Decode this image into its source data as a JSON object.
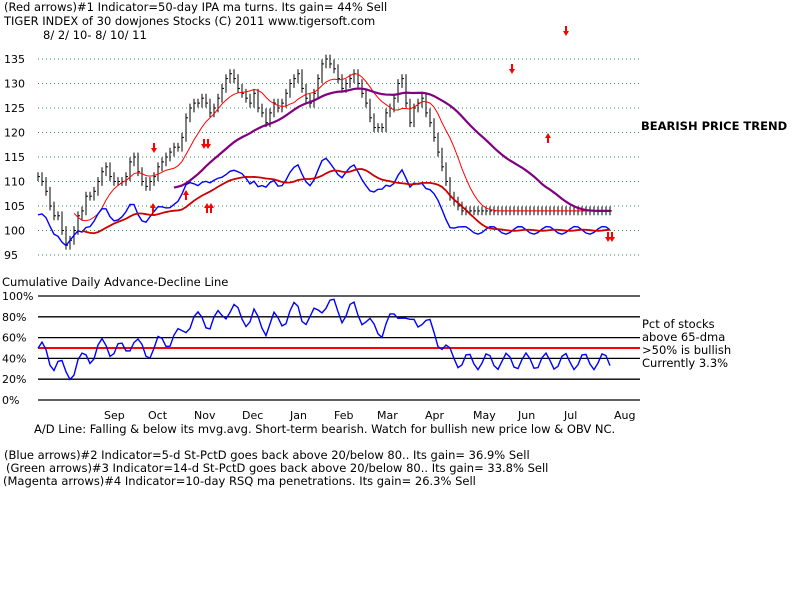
{
  "header": {
    "line1": "(Red arrows)#1 Indicator=50-day IPA ma turns. Its gain= 44% Sell",
    "line2": "TIGER INDEX of  30 dowjones Stocks  (C) 2011  www.tigersoft.com",
    "line3": "8/ 2/ 10- 8/ 10/ 11"
  },
  "annotations": {
    "trend": "BEARISH PRICE TREND",
    "cum_ad": "Cumulative Daily Advance-Decline Line",
    "pct_1": "Pct of stocks",
    "pct_2": "above 65-dma",
    "pct_3": ">50% is bullish",
    "pct_4": "Currently  3.3%",
    "ad_line": "A/D Line: Falling & below its mvg.avg. Short-term bearish. Watch for bullish new price low & OBV NC."
  },
  "footer": {
    "blue": "(Blue arrows)#2 Indicator=5-d St-PctD goes back above 20/below 80.. Its gain= 36.9% Sell",
    "green": "(Green arrows)#3 Indicator=14-d St-PctD goes back above 20/below 80.. Its gain= 33.8% Sell",
    "magenta": "(Magenta arrows)#4 Indicator=10-day RSQ ma penetrations. Its gain= 26.3% Sell"
  },
  "colors": {
    "price": "#000000",
    "ma_fast": "#ff0000",
    "ma_slow": "#800080",
    "ad_line": "#0000ff",
    "ad_ma": "#cc0000",
    "pct_line": "#0000ff",
    "fifty_line": "#ff0000",
    "arrow": "#ff0000"
  },
  "chart_data": [
    {
      "type": "line",
      "name": "price",
      "yticks": [
        135,
        130,
        125,
        120,
        115,
        110,
        105,
        100,
        95
      ],
      "ylim": [
        95,
        137
      ],
      "x": [
        0,
        4,
        8,
        12,
        16,
        20,
        24,
        28,
        32,
        36,
        40,
        44,
        48,
        52,
        56,
        60,
        64,
        68,
        72,
        76,
        80,
        84,
        88,
        92,
        96,
        100,
        104,
        108,
        112,
        116,
        120,
        124,
        128,
        132,
        136,
        140,
        144,
        148,
        152,
        156,
        160,
        164,
        168,
        172,
        176,
        180,
        184,
        188,
        192,
        196,
        200,
        204,
        208,
        212,
        216,
        220,
        224,
        228,
        232,
        236,
        240,
        244,
        248,
        252,
        256,
        260,
        264,
        268,
        272,
        276,
        280,
        284,
        288,
        292,
        296,
        300,
        304,
        308,
        312,
        316,
        320,
        324,
        328,
        332,
        336,
        340,
        344,
        348,
        352,
        356,
        360,
        364,
        368,
        372,
        376,
        380,
        384,
        388,
        392,
        396,
        400,
        404,
        408,
        412,
        416,
        420,
        424,
        428,
        432,
        436,
        440,
        444,
        448,
        452,
        456,
        460,
        464,
        468,
        472,
        476,
        480,
        484,
        488,
        492,
        496,
        500,
        504,
        508,
        512,
        516,
        520,
        524,
        528,
        532,
        536,
        540,
        544,
        548,
        552,
        556,
        560,
        564,
        568,
        572
      ],
      "close": [
        111,
        110,
        108,
        105,
        103,
        103,
        100,
        97,
        98,
        100,
        103,
        104,
        107,
        107,
        108,
        110,
        112,
        113,
        111,
        110,
        110,
        110,
        111,
        114,
        115,
        112,
        110,
        109,
        110,
        111,
        113,
        114,
        115,
        116,
        117,
        117,
        119,
        123,
        125,
        126,
        126,
        127,
        126,
        124,
        125,
        127,
        129,
        131,
        132,
        131,
        129,
        128,
        127,
        126,
        128,
        125,
        124,
        122,
        124,
        126,
        125,
        126,
        128,
        130,
        131,
        132,
        129,
        127,
        126,
        128,
        131,
        134,
        135,
        134,
        133,
        131,
        129,
        130,
        131,
        132,
        130,
        128,
        126,
        123,
        121,
        121,
        121,
        124,
        125,
        127,
        130,
        131,
        126,
        122,
        125,
        126,
        127,
        124,
        122,
        119,
        116,
        113,
        110,
        107,
        106,
        105,
        104,
        104,
        104,
        104,
        104,
        104,
        104,
        104,
        104,
        104,
        104,
        104,
        104,
        104,
        104,
        104,
        104,
        104,
        104,
        104,
        104,
        104,
        104,
        104,
        104,
        104,
        104,
        104,
        104,
        104,
        104,
        104,
        104,
        104,
        104,
        104,
        104,
        104
      ],
      "ma_fast": [
        null,
        null,
        null,
        null,
        null,
        null,
        null,
        null,
        null,
        null,
        null,
        null,
        null,
        null,
        null,
        null,
        null,
        null,
        null,
        null,
        null,
        null,
        null,
        null,
        null,
        null,
        null,
        null,
        null,
        null,
        null,
        null,
        null,
        null,
        null,
        null,
        null,
        null,
        null,
        null,
        null,
        null,
        null,
        null,
        null,
        null,
        null,
        null,
        null,
        null,
        null,
        null,
        null,
        null,
        null,
        null,
        null,
        null,
        null,
        null,
        null,
        null,
        null,
        null,
        null,
        null,
        null,
        null,
        null,
        null,
        null,
        null,
        null,
        null,
        null,
        null,
        null,
        null,
        null,
        null,
        null,
        null,
        null,
        null,
        null,
        null,
        null,
        null,
        null,
        null,
        null,
        null,
        null,
        null,
        null,
        null,
        null,
        null,
        null,
        null,
        null,
        null,
        null,
        null,
        null,
        null,
        null,
        null,
        null,
        null,
        null,
        null,
        null,
        null,
        null,
        null,
        null,
        null,
        null,
        null,
        null,
        null,
        null,
        null,
        null,
        null,
        null,
        null,
        null,
        null,
        null,
        null,
        null,
        null,
        null,
        null,
        null,
        null,
        null,
        null,
        null,
        null,
        null,
        null
      ],
      "ma_slow": [
        null,
        null,
        null,
        null,
        null,
        null,
        null,
        null,
        null,
        null,
        null,
        null,
        null,
        null,
        null,
        null,
        null,
        null,
        null,
        null,
        null,
        null,
        null,
        null,
        null,
        null,
        null,
        null,
        null,
        null,
        null,
        null,
        null,
        null,
        null,
        null,
        null,
        null,
        null,
        null,
        null,
        null,
        null,
        null,
        null,
        null,
        null,
        null,
        null,
        null,
        null,
        null,
        null,
        null,
        null,
        null,
        null,
        null,
        null,
        null,
        null,
        null,
        null,
        null,
        null,
        null,
        null,
        null,
        null,
        null,
        null,
        null,
        null,
        null,
        null,
        null,
        null,
        null,
        null,
        null,
        null,
        null,
        null,
        null,
        null,
        null,
        null,
        null,
        null,
        null,
        null,
        null,
        null,
        null,
        null,
        null,
        null,
        null,
        null,
        null,
        null,
        null,
        null,
        null,
        null,
        null,
        null,
        null,
        null,
        null,
        null,
        null,
        null,
        null,
        null,
        null,
        null,
        null,
        null,
        null,
        null,
        null,
        null,
        null,
        null,
        null,
        null,
        null,
        null,
        null,
        null,
        null,
        null,
        null,
        null,
        null,
        null,
        null,
        null,
        null,
        null,
        null,
        null,
        null
      ]
    },
    {
      "type": "line",
      "name": "pct_above_65dma",
      "yticks": [
        "100%",
        "80%",
        "60%",
        "40%",
        "20%",
        "0%"
      ],
      "ylim": [
        0,
        100
      ],
      "xticks": [
        "Sep",
        "Oct",
        "Nov",
        "Dec",
        "Jan",
        "Feb",
        "Mar",
        "Apr",
        "May",
        "Jun",
        "Jul",
        "Aug"
      ],
      "current": 3.3,
      "threshold": 50
    }
  ]
}
